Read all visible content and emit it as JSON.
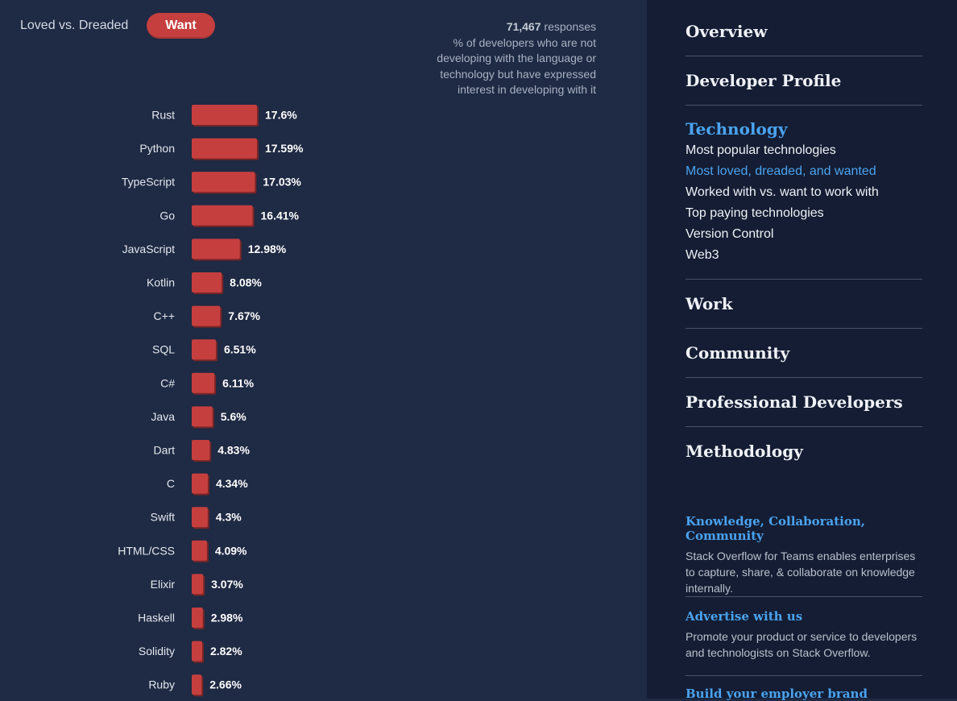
{
  "toggle": {
    "label": "Loved vs. Dreaded",
    "active_button": "Want"
  },
  "responses": {
    "count": "71,467",
    "count_suffix": "responses",
    "description": "% of developers who are not developing with the language or technology but have expressed interest in developing with it"
  },
  "chart_data": {
    "type": "bar",
    "orientation": "horizontal",
    "categories": [
      "Rust",
      "Python",
      "TypeScript",
      "Go",
      "JavaScript",
      "Kotlin",
      "C++",
      "SQL",
      "C#",
      "Java",
      "Dart",
      "C",
      "Swift",
      "HTML/CSS",
      "Elixir",
      "Haskell",
      "Solidity",
      "Ruby"
    ],
    "values": [
      17.6,
      17.59,
      17.03,
      16.41,
      12.98,
      8.08,
      7.67,
      6.51,
      6.11,
      5.6,
      4.83,
      4.34,
      4.3,
      4.09,
      3.07,
      2.98,
      2.82,
      2.66
    ],
    "labels": [
      "17.6%",
      "17.59%",
      "17.03%",
      "16.41%",
      "12.98%",
      "8.08%",
      "7.67%",
      "6.51%",
      "6.11%",
      "5.6%",
      "4.83%",
      "4.34%",
      "4.3%",
      "4.09%",
      "3.07%",
      "2.98%",
      "2.82%",
      "2.66%"
    ],
    "bar_color": "#c63f3f",
    "grid": false
  },
  "sidebar": {
    "sections": [
      {
        "label": "Overview"
      },
      {
        "label": "Developer Profile"
      },
      {
        "label": "Technology",
        "active": true,
        "items": [
          "Most popular technologies",
          "Most loved, dreaded, and wanted",
          "Worked with vs. want to work with",
          "Top paying technologies",
          "Version Control",
          "Web3"
        ],
        "current_item": "Most loved, dreaded, and wanted"
      },
      {
        "label": "Work"
      },
      {
        "label": "Community"
      },
      {
        "label": "Professional Developers"
      },
      {
        "label": "Methodology"
      }
    ],
    "promos": [
      {
        "title": "Knowledge, Collaboration, Community",
        "text": "Stack Overflow for Teams enables enterprises to capture, share, & collaborate on knowledge internally."
      },
      {
        "title": "Advertise with us",
        "text": "Promote your product or service to developers and technologists on Stack Overflow."
      },
      {
        "title": "Build your employer brand",
        "text": ""
      }
    ]
  },
  "colors": {
    "accent": "#4aa3f0",
    "bar": "#c63f3f",
    "main_bg": "#1f2a44",
    "sidebar_bg": "#141d33"
  }
}
